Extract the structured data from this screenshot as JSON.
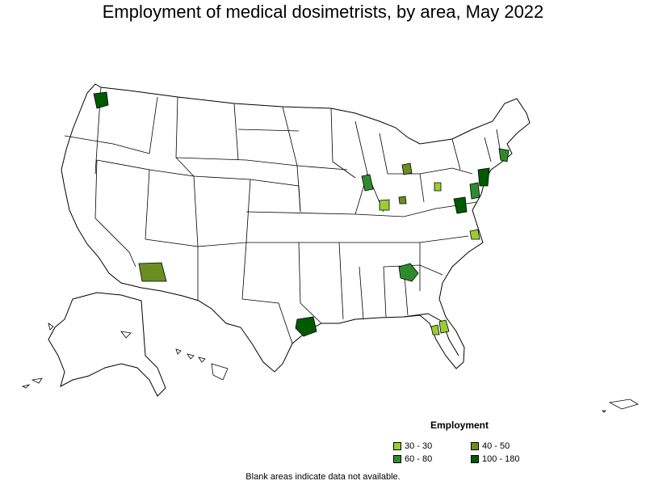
{
  "title": "Employment of medical dosimetrists, by area, May 2022",
  "legend": {
    "title": "Employment",
    "items": [
      {
        "label": "30 - 30",
        "color": "#9ACD32"
      },
      {
        "label": "40 - 50",
        "color": "#6B8E23"
      },
      {
        "label": "60 - 80",
        "color": "#2E8B2E"
      },
      {
        "label": "100 - 180",
        "color": "#005A00"
      }
    ]
  },
  "footnote": "Blank areas indicate data not available."
}
